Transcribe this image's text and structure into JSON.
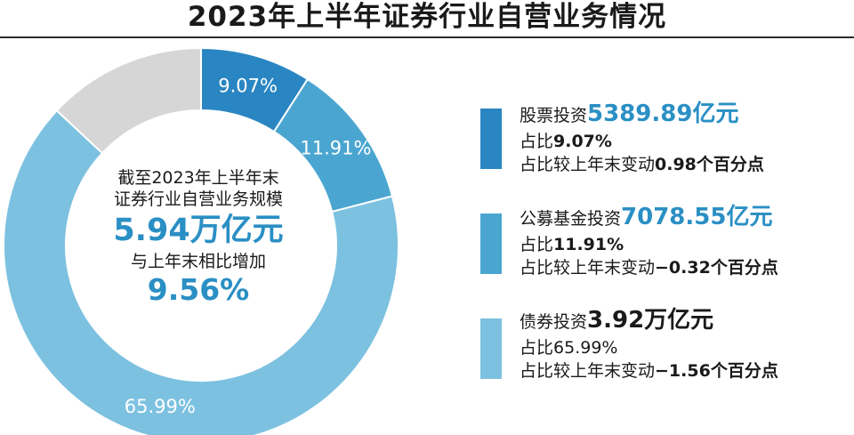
{
  "title": "2023年上半年证券行业自营业务情况",
  "center": {
    "line1": "截至2023年上半年末",
    "line2": "证券行业自营业务规模",
    "value": "5.94万亿元",
    "line3": "与上年末相比增加",
    "change": "9.56%"
  },
  "legend": [
    {
      "name": "股票投资",
      "amount": "5389.89亿元",
      "share_label": "占比",
      "share": "9.07%",
      "change_label": "占比较上年末变动",
      "change": "0.98个百分点",
      "color": "#2a86c2"
    },
    {
      "name": "公募基金投资",
      "amount": "7078.55亿元",
      "share_label": "占比",
      "share": "11.91%",
      "change_label": "占比较上年末变动",
      "change": "−0.32个百分点",
      "color": "#4aa6d0"
    },
    {
      "name": "债券投资",
      "amount": "3.92万亿元",
      "share_label": "占比",
      "share": "65.99%",
      "change_label": "占比较上年末变动",
      "change": "−1.56个百分点",
      "color": "#7cc1e0"
    }
  ],
  "chart_data": {
    "type": "pie",
    "donut": true,
    "categories": [
      "股票投资",
      "公募基金投资",
      "债券投资",
      ""
    ],
    "values": [
      9.07,
      11.91,
      65.99,
      13.03
    ],
    "labels": [
      "9.07%",
      "11.91%",
      "65.99%",
      ""
    ],
    "colors": [
      "#2a86c2",
      "#4aa6d0",
      "#7cc1e0",
      "#d6d6d6"
    ],
    "start_angle_deg": 0,
    "direction": "clockwise"
  }
}
